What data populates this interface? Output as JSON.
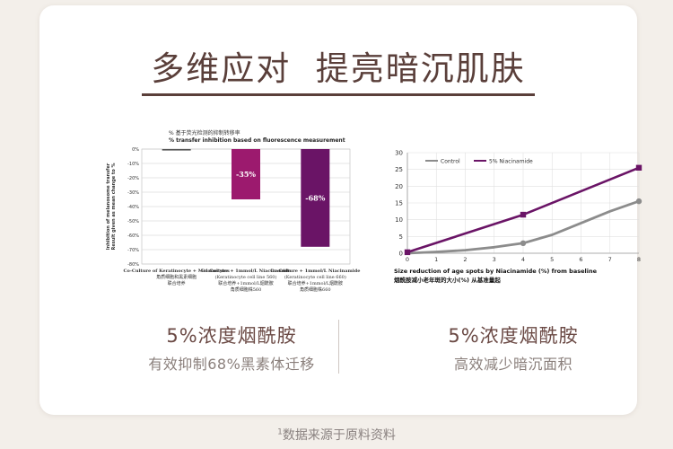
{
  "headline": "多维应对  提亮暗沉肌肤",
  "footnote": {
    "marker": "1",
    "text": "数据来源于原料资料"
  },
  "captions": {
    "left": {
      "title": "5%浓度烟酰胺",
      "subtitle": "有效抑制68%黑素体迁移"
    },
    "right": {
      "title": "5%浓度烟酰胺",
      "subtitle": "高效减少暗沉面积"
    }
  },
  "chart_data": [
    {
      "type": "bar",
      "title": "% 基于荧光检测的抑制转移率",
      "subtitle": "% transfer inhibition based on fluorescence measurement",
      "ylabel": "Inhibition of melanosome transfer\nResult given as mean change to %",
      "ylim": [
        -80,
        0
      ],
      "yticks": [
        "0%",
        "-10%",
        "-20%",
        "-30%",
        "-40%",
        "-50%",
        "-60%",
        "-70%",
        "-80%"
      ],
      "grid": true,
      "categories": [
        "Co-Culture of Keratinocyte + Melanocytes\n角质细胞和黑素细胞\n联合培养",
        "Co-Culture + 1mmol/L Niacinamide\n(Keratinocyte cell line 560)\n联合培养+1mmol/L烟酰胺\n角质细胞株560",
        "Co-Culture + 1mmol/L Niacinamide\n(Keratinocyte cell line 660)\n联合培养+1mmol/L烟酰胺\n角质细胞株660"
      ],
      "values": [
        -1,
        -35,
        -68
      ],
      "data_labels": [
        "",
        "-35%",
        "-68%"
      ],
      "colors": [
        "#555555",
        "#9c1a6e",
        "#6a1466"
      ]
    },
    {
      "type": "line",
      "title": "",
      "xlabel": "Size reduction of age spots by Niacinamide (%) from baseline",
      "xlabel_cn": "烟酰胺减小老年斑的大小(%) 从基准量起",
      "ylabel": "",
      "xlim": [
        0,
        8
      ],
      "ylim": [
        0,
        30
      ],
      "xticks": [
        0,
        1,
        2,
        3,
        4,
        5,
        6,
        7,
        8
      ],
      "yticks": [
        0,
        5,
        10,
        15,
        20,
        25,
        30
      ],
      "grid": true,
      "legend": "top-left",
      "series": [
        {
          "name": "Control",
          "color": "#8c8c8c",
          "x": [
            0,
            1,
            2,
            3,
            4,
            5,
            6,
            7,
            8
          ],
          "y": [
            0,
            0.4,
            0.9,
            1.8,
            3,
            5.5,
            9,
            12.5,
            15.5
          ],
          "markers": [
            [
              4,
              3
            ],
            [
              8,
              15.5
            ]
          ]
        },
        {
          "name": "5% Niacinamide",
          "color": "#6a1466",
          "x": [
            0,
            4,
            8
          ],
          "y": [
            0.3,
            11.5,
            25.5
          ],
          "markers": [
            [
              0,
              0.3
            ],
            [
              4,
              11.5
            ],
            [
              8,
              25.5
            ]
          ]
        }
      ]
    }
  ]
}
